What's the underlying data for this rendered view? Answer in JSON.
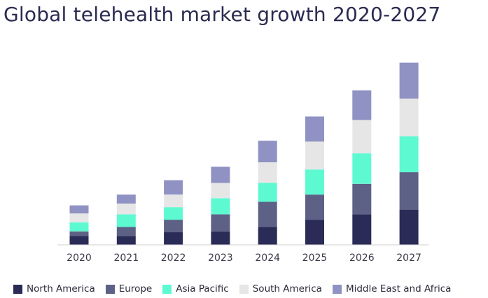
{
  "chart_data": {
    "type": "bar",
    "stacked": true,
    "title": "Global telehealth market growth 2020-2027",
    "xlabel": "",
    "ylabel": "",
    "categories": [
      "2020",
      "2021",
      "2022",
      "2023",
      "2024",
      "2025",
      "2026",
      "2027"
    ],
    "series": [
      {
        "name": "North America",
        "color": "#2a2b57",
        "values": [
          10,
          10,
          14,
          15,
          20,
          28,
          34,
          39
        ]
      },
      {
        "name": "Europe",
        "color": "#5d6185",
        "values": [
          5,
          10,
          14,
          19,
          28,
          28,
          34,
          42
        ]
      },
      {
        "name": "Asia Pacific",
        "color": "#5dfad2",
        "values": [
          10,
          14,
          14,
          18,
          21,
          28,
          34,
          40
        ]
      },
      {
        "name": "South America",
        "color": "#e6e6e6",
        "values": [
          10,
          12,
          14,
          17,
          23,
          31,
          37,
          42
        ]
      },
      {
        "name": "Middle East and Africa",
        "color": "#8f92c2",
        "values": [
          9,
          10,
          16,
          18,
          24,
          28,
          33,
          40
        ]
      }
    ],
    "ylim": [
      0,
      205
    ],
    "grid": false,
    "legend_position": "bottom"
  }
}
